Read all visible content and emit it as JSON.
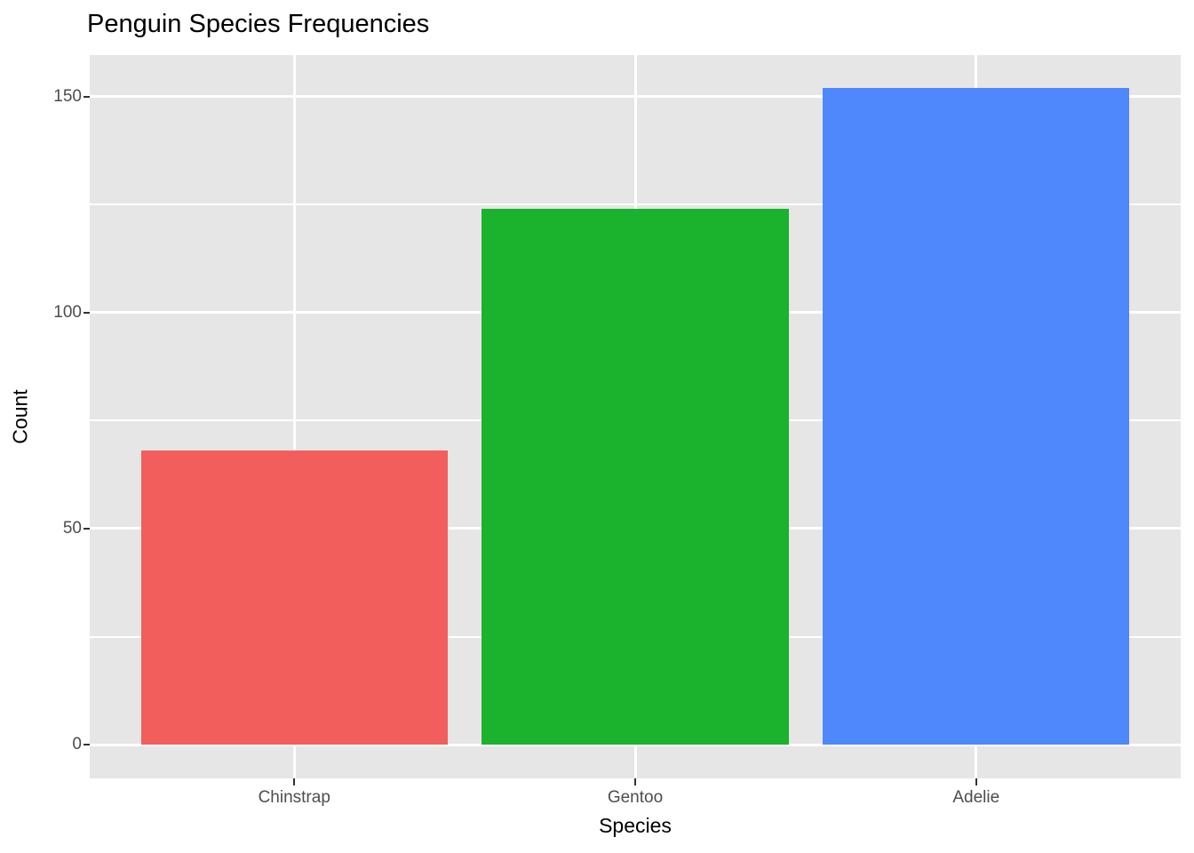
{
  "chart_data": {
    "type": "bar",
    "title": "Penguin Species Frequencies",
    "xlabel": "Species",
    "ylabel": "Count",
    "categories": [
      "Chinstrap",
      "Gentoo",
      "Adelie"
    ],
    "values": [
      68,
      124,
      152
    ],
    "bar_colors": [
      "#F25E5B",
      "#1BB22E",
      "#4F87FC"
    ],
    "ylim": [
      -7.8,
      159.6
    ],
    "yticks": [
      0,
      50,
      100,
      150
    ],
    "yticks_minor": [
      25,
      75,
      125
    ],
    "grid": "on",
    "legend": "none",
    "bar_width_fraction": 0.9,
    "style": {
      "panel_bg": "#E6E6E6",
      "grid_color": "#FFFFFF",
      "tick_label_color": "#4D4D4D",
      "tick_mark_color": "#333333",
      "title_color": "#000000"
    }
  }
}
